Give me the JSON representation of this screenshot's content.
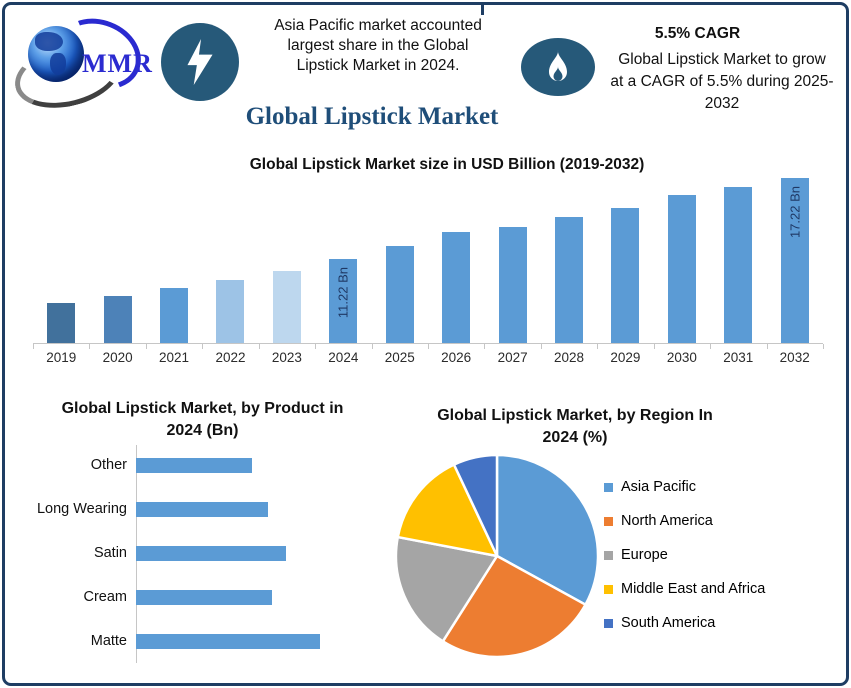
{
  "brand": {
    "logo_text": "MMR"
  },
  "header": {
    "highlight_text": "Asia Pacific market accounted\nlargest share in the Global\nLipstick Market in 2024.",
    "cagr_title": "5.5% CAGR",
    "cagr_text": "Global Lipstick Market to grow\nat a CAGR of 5.5% during 2025-\n2032"
  },
  "page_title": "Global Lipstick Market",
  "colors": {
    "frame_navy": "#1E3D63",
    "badge_navy": "#265979",
    "title_navy": "#1F4E79",
    "logo_blue": "#2b2bd0",
    "bar_blue": "#5B9BD5",
    "bar_label_navy": "#1F3864",
    "axis_gray": "#C6C6C6"
  },
  "chart_data": [
    {
      "type": "bar",
      "title": "Global Lipstick Market size in USD Billion (2019-2032)",
      "categories": [
        "2019",
        "2020",
        "2021",
        "2022",
        "2023",
        "2024",
        "2025",
        "2026",
        "2027",
        "2028",
        "2029",
        "2030",
        "2031",
        "2032"
      ],
      "values": [
        7.95,
        8.5,
        9.05,
        9.65,
        10.35,
        11.22,
        12.15,
        13.2,
        13.6,
        14.3,
        15.0,
        15.9,
        16.5,
        17.22
      ],
      "bar_labels": [
        "",
        "",
        "",
        "",
        "",
        "11.22 Bn",
        "",
        "",
        "",
        "",
        "",
        "",
        "",
        "17.22 Bn"
      ],
      "bar_colors": [
        "#41719C",
        "#4D82B8",
        "#5B9BD5",
        "#9DC3E6",
        "#BDD7EE",
        "#5B9BD5",
        "#5B9BD5",
        "#5B9BD5",
        "#5B9BD5",
        "#5B9BD5",
        "#5B9BD5",
        "#5B9BD5",
        "#5B9BD5",
        "#5B9BD5"
      ],
      "ylabel": "USD Billion",
      "ylim": [
        5,
        18
      ],
      "grid": false
    },
    {
      "type": "bar",
      "orientation": "horizontal",
      "title": "Global Lipstick Market, by Product in\n2024 (Bn)",
      "categories": [
        "Other",
        "Long Wearing",
        "Satin",
        "Cream",
        "Matte"
      ],
      "values": [
        1.8,
        2.05,
        2.33,
        2.12,
        2.86
      ],
      "xlim": [
        0,
        3.5
      ],
      "bar_color": "#5B9BD5",
      "grid": false
    },
    {
      "type": "pie",
      "title": "Global Lipstick Market, by Region In\n2024 (%)",
      "labels": [
        "Asia Pacific",
        "North America",
        "Europe",
        "Middle East and Africa",
        "South America"
      ],
      "values": [
        33,
        26,
        19,
        15,
        7
      ],
      "colors": [
        "#5B9BD5",
        "#ED7D31",
        "#A5A5A5",
        "#FFC000",
        "#4472C4"
      ],
      "legend_position": "right",
      "start_angle": 0
    }
  ]
}
